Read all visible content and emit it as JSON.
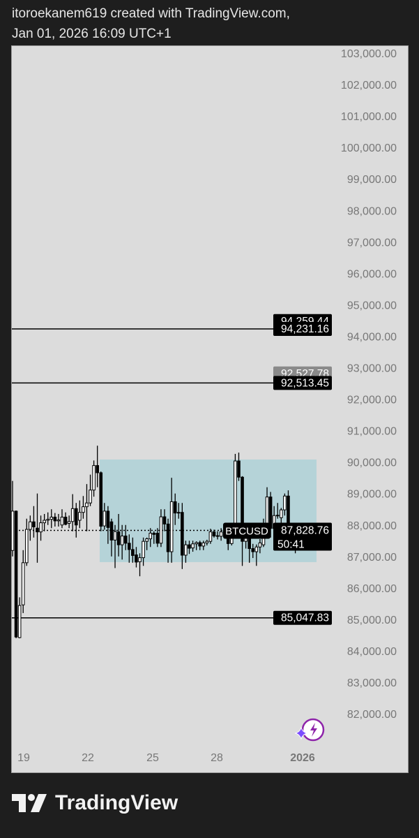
{
  "header": {
    "line1": "itoroekanem619 created with TradingView.com,",
    "line2": "Jan 01, 2026 16:09 UTC+1"
  },
  "footer": {
    "brand": "TradingView"
  },
  "colors": {
    "panel": "#dcdcdc",
    "box": "#b5d3d8",
    "badge": "#000000",
    "badge_grey": "#8a8a8a",
    "axis_text": "#777777"
  },
  "chart_data": {
    "type": "candlestick",
    "symbol": "BTCUSD",
    "ylim": [
      81500,
      103300
    ],
    "price_ticks": [
      103000,
      102000,
      101000,
      100000,
      99000,
      98000,
      97000,
      96000,
      95000,
      94000,
      93000,
      92000,
      91000,
      90000,
      89000,
      88000,
      87000,
      86000,
      85000,
      84000,
      83000,
      82000
    ],
    "price_tick_labels": [
      "103,000.00",
      "102,000.00",
      "101,000.00",
      "100,000.00",
      "99,000.00",
      "98,000.00",
      "97,000.00",
      "96,000.00",
      "95,000.00",
      "94,000.00",
      "93,000.00",
      "92,000.00",
      "91,000.00",
      "90,000.00",
      "89,000.00",
      "88,000.00",
      "87,000.00",
      "86,000.00",
      "85,000.00",
      "84,000.00",
      "83,000.00",
      "82,000.00"
    ],
    "time_ticks": [
      "19",
      "22",
      "25",
      "28",
      "2026"
    ],
    "horizontal_lines": [
      94231.16,
      92513.45,
      85047.83
    ],
    "price_badges": [
      {
        "value": 94259.44,
        "label": "94,259.44",
        "style": "black"
      },
      {
        "value": 94231.16,
        "label": "94,231.16",
        "style": "black"
      },
      {
        "value": 92527.78,
        "label": "92,527.78",
        "style": "grey"
      },
      {
        "value": 92513.45,
        "label": "92,513.45",
        "style": "black"
      },
      {
        "value": 85047.83,
        "label": "85,047.83",
        "style": "black"
      }
    ],
    "last_price": {
      "value": 87828.76,
      "label": "87,828.76",
      "countdown": "50:41",
      "symbol_label": "BTCUSD"
    },
    "range_box": {
      "top": 90080,
      "bottom": 86820
    },
    "candles_ohlc": [
      [
        87190,
        89400,
        87000,
        88440
      ],
      [
        88440,
        88460,
        84400,
        84440
      ],
      [
        84420,
        85700,
        84400,
        85440
      ],
      [
        85460,
        87200,
        85200,
        86800
      ],
      [
        86800,
        88200,
        86700,
        87860
      ],
      [
        87860,
        88300,
        87500,
        88100
      ],
      [
        88100,
        88600,
        87600,
        87940
      ],
      [
        87900,
        89000,
        86800,
        87780
      ],
      [
        87780,
        88300,
        87500,
        88070
      ],
      [
        88070,
        88350,
        87800,
        88150
      ],
      [
        88150,
        88400,
        88000,
        88180
      ],
      [
        88180,
        88500,
        87900,
        88250
      ],
      [
        88250,
        88380,
        87950,
        88130
      ],
      [
        88130,
        88350,
        87950,
        88160
      ],
      [
        88000,
        88500,
        87900,
        88250
      ],
      [
        88250,
        88400,
        87990,
        88020
      ],
      [
        88050,
        88300,
        87900,
        88110
      ],
      [
        88110,
        88980,
        87800,
        88520
      ],
      [
        88520,
        88700,
        87600,
        88000
      ],
      [
        88150,
        88780,
        87900,
        88400
      ],
      [
        88400,
        88920,
        88200,
        88580
      ],
      [
        88580,
        89300,
        87800,
        88700
      ],
      [
        88700,
        89600,
        88600,
        89110
      ],
      [
        89110,
        90050,
        88900,
        89890
      ],
      [
        89890,
        90520,
        89200,
        89660
      ],
      [
        89660,
        89700,
        87800,
        87960
      ],
      [
        87970,
        88700,
        87850,
        88440
      ],
      [
        88440,
        88600,
        87400,
        87920
      ],
      [
        88100,
        88200,
        87000,
        87520
      ],
      [
        87520,
        88000,
        86630,
        87790
      ],
      [
        87780,
        88350,
        87000,
        87370
      ],
      [
        87370,
        88000,
        86900,
        87650
      ],
      [
        87650,
        88000,
        87200,
        87420
      ],
      [
        87420,
        87700,
        86800,
        87220
      ],
      [
        87220,
        87600,
        86800,
        87030
      ],
      [
        87050,
        87300,
        86650,
        86820
      ],
      [
        86830,
        87100,
        86370,
        86960
      ],
      [
        86960,
        87600,
        86700,
        87480
      ],
      [
        87480,
        87600,
        87200,
        87560
      ],
      [
        87560,
        87900,
        87300,
        87740
      ],
      [
        87740,
        87800,
        87400,
        87700
      ],
      [
        87740,
        87900,
        87300,
        87420
      ],
      [
        87420,
        88500,
        87300,
        88260
      ],
      [
        88260,
        88500,
        87800,
        88030
      ],
      [
        88030,
        88200,
        86800,
        87150
      ],
      [
        87150,
        89500,
        86800,
        88740
      ],
      [
        88740,
        89000,
        88000,
        88380
      ],
      [
        88380,
        88700,
        88200,
        88400
      ],
      [
        88400,
        88700,
        86600,
        87040
      ],
      [
        87040,
        87500,
        86800,
        87370
      ],
      [
        87370,
        87500,
        87080,
        87260
      ],
      [
        87270,
        87500,
        87150,
        87400
      ],
      [
        87400,
        87480,
        87200,
        87440
      ],
      [
        87440,
        87500,
        87200,
        87330
      ],
      [
        87330,
        87500,
        87200,
        87430
      ],
      [
        87430,
        87530,
        87350,
        87480
      ],
      [
        87480,
        87880,
        87400,
        87780
      ],
      [
        87780,
        87850,
        87600,
        87650
      ],
      [
        87650,
        87800,
        87540,
        87660
      ],
      [
        87640,
        87900,
        87500,
        87780
      ],
      [
        87780,
        88000,
        87650,
        87780
      ],
      [
        87780,
        87900,
        87200,
        87410
      ],
      [
        87410,
        87950,
        87350,
        87820
      ],
      [
        87820,
        90260,
        87800,
        90035
      ],
      [
        90035,
        90300,
        89400,
        89520
      ],
      [
        89520,
        89550,
        86700,
        87480
      ],
      [
        87480,
        87650,
        87250,
        87600
      ],
      [
        87600,
        88000,
        86800,
        87250
      ],
      [
        87250,
        87400,
        86950,
        87150
      ],
      [
        87150,
        87380,
        86700,
        87300
      ],
      [
        87300,
        87550,
        87100,
        87430
      ],
      [
        87370,
        88200,
        87300,
        87780
      ],
      [
        87780,
        89200,
        87700,
        88890
      ],
      [
        88890,
        89050,
        87600,
        87890
      ],
      [
        87890,
        88600,
        87800,
        88300
      ],
      [
        88300,
        88700,
        88200,
        88310
      ],
      [
        88230,
        88540,
        87900,
        88480
      ],
      [
        88480,
        89000,
        88300,
        88920
      ],
      [
        88920,
        89100,
        87500,
        87560
      ],
      [
        87560,
        87900,
        87350,
        87430
      ],
      [
        87430,
        87800,
        87100,
        87500
      ],
      [
        87500,
        87650,
        87420,
        87530
      ],
      [
        87530,
        87720,
        87400,
        87470
      ],
      [
        87470,
        87600,
        87380,
        87520
      ],
      [
        87520,
        87900,
        87400,
        87828.76
      ]
    ]
  }
}
